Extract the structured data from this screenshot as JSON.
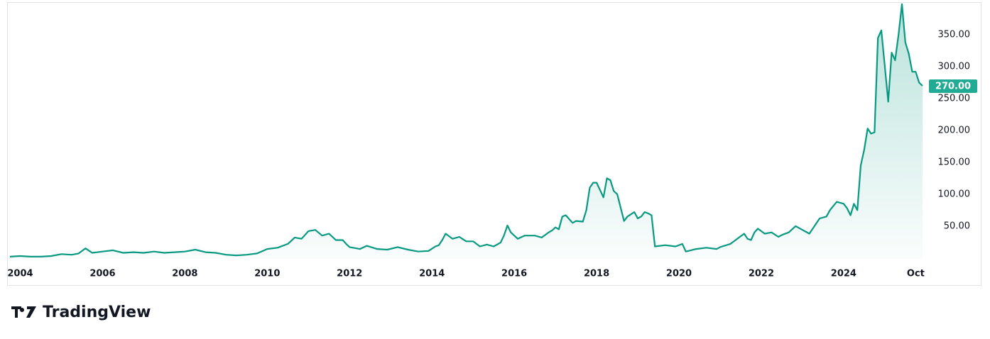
{
  "chart_data": {
    "type": "area",
    "branding": "TradingView",
    "x": [
      "2003-10",
      "2004-01",
      "2004-04",
      "2004-07",
      "2004-10",
      "2005-01",
      "2005-04",
      "2005-06",
      "2005-08",
      "2005-10",
      "2006-01",
      "2006-04",
      "2006-07",
      "2006-10",
      "2007-01",
      "2007-04",
      "2007-07",
      "2007-10",
      "2008-01",
      "2008-04",
      "2008-07",
      "2008-10",
      "2009-01",
      "2009-04",
      "2009-07",
      "2009-10",
      "2010-01",
      "2010-04",
      "2010-07",
      "2010-09",
      "2010-11",
      "2011-01",
      "2011-03",
      "2011-05",
      "2011-07",
      "2011-09",
      "2011-11",
      "2011-12",
      "2012-01",
      "2012-04",
      "2012-06",
      "2012-09",
      "2012-12",
      "2013-03",
      "2013-06",
      "2013-09",
      "2013-12",
      "2014-02",
      "2014-03",
      "2014-04",
      "2014-05",
      "2014-07",
      "2014-09",
      "2014-11",
      "2015-01",
      "2015-03",
      "2015-05",
      "2015-07",
      "2015-09",
      "2015-10",
      "2015-11",
      "2015-12",
      "2016-02",
      "2016-04",
      "2016-07",
      "2016-09",
      "2016-11",
      "2016-12",
      "2017-01",
      "2017-02",
      "2017-03",
      "2017-04",
      "2017-06",
      "2017-07",
      "2017-09",
      "2017-10",
      "2017-11",
      "2017-12",
      "2018-01",
      "2018-03",
      "2018-04",
      "2018-05",
      "2018-06",
      "2018-07",
      "2018-09",
      "2018-10",
      "2018-12",
      "2019-01",
      "2019-02",
      "2019-03",
      "2019-04",
      "2019-05",
      "2019-06",
      "2019-09",
      "2019-12",
      "2020-02",
      "2020-03",
      "2020-06",
      "2020-09",
      "2020-12",
      "2021-01",
      "2021-04",
      "2021-06",
      "2021-08",
      "2021-09",
      "2021-10",
      "2021-11",
      "2021-12",
      "2022-02",
      "2022-04",
      "2022-06",
      "2022-07",
      "2022-09",
      "2022-11",
      "2023-01",
      "2023-03",
      "2023-06",
      "2023-08",
      "2023-09",
      "2023-11",
      "2024-01",
      "2024-02",
      "2024-03",
      "2024-04",
      "2024-05",
      "2024-06",
      "2024-07",
      "2024-08",
      "2024-09",
      "2024-10",
      "2024-11",
      "2024-12",
      "2025-02",
      "2025-03",
      "2025-04",
      "2025-05",
      "2025-06",
      "2025-07",
      "2025-08",
      "2025-09",
      "2025-10",
      "2025-11",
      "2025-12"
    ],
    "series": [
      {
        "color": "#089981",
        "values": [
          2,
          3,
          2,
          2,
          3,
          6,
          5,
          7,
          15,
          8,
          10,
          12,
          8,
          9,
          8,
          10,
          8,
          9,
          10,
          13,
          9,
          8,
          5,
          4,
          5,
          7,
          14,
          16,
          22,
          32,
          30,
          42,
          44,
          35,
          38,
          28,
          28,
          22,
          17,
          14,
          19,
          14,
          13,
          17,
          13,
          10,
          11,
          18,
          20,
          28,
          38,
          30,
          33,
          26,
          26,
          18,
          21,
          18,
          24,
          35,
          51,
          40,
          30,
          35,
          35,
          32,
          40,
          43,
          48,
          45,
          65,
          67,
          55,
          58,
          57,
          75,
          110,
          118,
          118,
          95,
          125,
          122,
          105,
          100,
          58,
          65,
          72,
          62,
          65,
          72,
          70,
          67,
          18,
          20,
          18,
          22,
          10,
          14,
          16,
          14,
          17,
          22,
          30,
          38,
          30,
          28,
          40,
          46,
          38,
          40,
          33,
          36,
          40,
          50,
          44,
          38,
          62,
          65,
          75,
          88,
          85,
          78,
          67,
          85,
          75,
          145,
          170,
          203,
          195,
          197,
          345,
          357,
          245,
          322,
          310,
          350,
          398,
          338,
          320,
          292,
          292,
          275,
          270
        ]
      }
    ],
    "current_price": {
      "value": 270,
      "label": "270.00"
    },
    "xlim": [
      "2003-10",
      "2025-12"
    ],
    "xticks": [
      {
        "value": "2004-01",
        "label": "2004"
      },
      {
        "value": "2006-01",
        "label": "2006"
      },
      {
        "value": "2008-01",
        "label": "2008"
      },
      {
        "value": "2010-01",
        "label": "2010"
      },
      {
        "value": "2012-01",
        "label": "2012"
      },
      {
        "value": "2014-01",
        "label": "2014"
      },
      {
        "value": "2016-01",
        "label": "2016"
      },
      {
        "value": "2018-01",
        "label": "2018"
      },
      {
        "value": "2020-01",
        "label": "2020"
      },
      {
        "value": "2022-01",
        "label": "2022"
      },
      {
        "value": "2024-01",
        "label": "2024"
      },
      {
        "value": "2025-10",
        "label": "Oct"
      }
    ],
    "ylim": [
      -7,
      399
    ],
    "yticks": [
      {
        "value": 50,
        "label": "50.00"
      },
      {
        "value": 100,
        "label": "100.00"
      },
      {
        "value": 150,
        "label": "150.00"
      },
      {
        "value": 200,
        "label": "200.00"
      },
      {
        "value": 250,
        "label": "250.00"
      },
      {
        "value": 300,
        "label": "300.00"
      },
      {
        "value": 350,
        "label": "350.00"
      }
    ],
    "grid": false
  }
}
